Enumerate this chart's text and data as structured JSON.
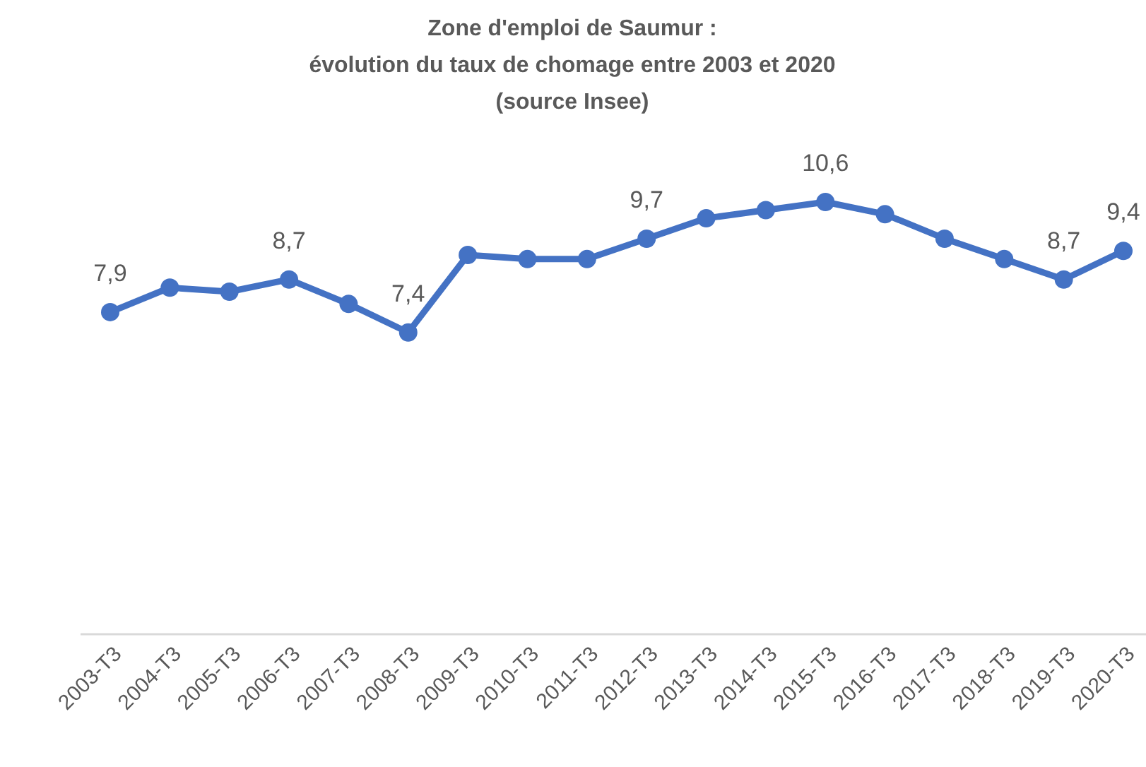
{
  "chart_data": {
    "type": "line",
    "title": "Zone d'emploi de Saumur :\névolution du taux de chomage entre 2003 et 2020\n(source Insee)",
    "categories": [
      "2003-T3",
      "2004-T3",
      "2005-T3",
      "2006-T3",
      "2007-T3",
      "2008-T3",
      "2009-T3",
      "2010-T3",
      "2011-T3",
      "2012-T3",
      "2013-T3",
      "2014-T3",
      "2015-T3",
      "2016-T3",
      "2017-T3",
      "2018-T3",
      "2019-T3",
      "2020-T3"
    ],
    "series": [
      {
        "color": "#4472c4",
        "values": [
          7.9,
          8.5,
          8.4,
          8.7,
          8.1,
          7.4,
          9.3,
          9.2,
          9.2,
          9.7,
          10.2,
          10.4,
          10.6,
          10.3,
          9.7,
          9.2,
          8.7,
          9.4
        ],
        "value_labels": [
          "7,9",
          null,
          null,
          "8,7",
          null,
          "7,4",
          null,
          null,
          null,
          "9,7",
          null,
          null,
          "10,6",
          null,
          null,
          null,
          "8,7",
          "9,4"
        ]
      }
    ],
    "tick_labels": "x",
    "marker": "circle",
    "line_style": "solid"
  }
}
